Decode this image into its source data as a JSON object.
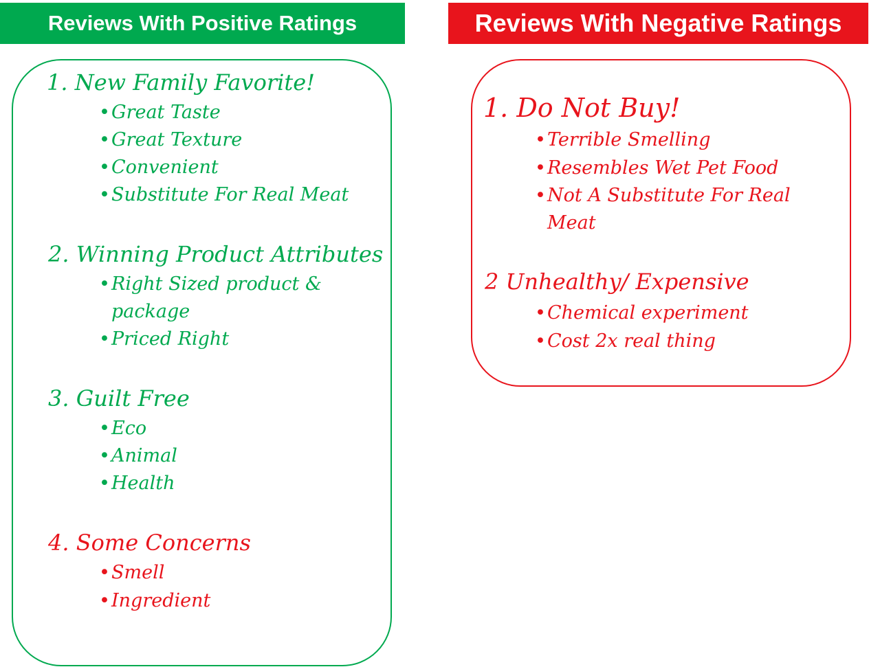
{
  "colors": {
    "positive": "#00a94f",
    "negative": "#e8141c",
    "positive_border": "#00a94f",
    "negative_border": "#e8141c"
  },
  "positive": {
    "header": "Reviews With Positive Ratings",
    "sections": [
      {
        "title": "1. New Family Favorite!",
        "items": [
          "Great Taste",
          "Great Texture",
          "Convenient",
          "Substitute For Real Meat"
        ]
      },
      {
        "title": "2. Winning Product Attributes",
        "items": [
          "Right Sized product &",
          "package",
          "Priced Right"
        ]
      },
      {
        "title": "3. Guilt Free",
        "items": [
          "Eco",
          "Animal",
          "Health"
        ]
      },
      {
        "title": "4. Some Concerns",
        "items": [
          "Smell",
          "Ingredient"
        ]
      }
    ]
  },
  "negative": {
    "header": "Reviews With Negative Ratings",
    "sections": [
      {
        "title": "1. Do Not Buy!",
        "items": [
          "Terrible Smelling",
          "Resembles Wet Pet Food",
          "Not A Substitute For Real",
          "Meat"
        ]
      },
      {
        "title": "2 Unhealthy/ Expensive",
        "items": [
          "Chemical experiment",
          "Cost 2x real thing"
        ]
      }
    ]
  }
}
